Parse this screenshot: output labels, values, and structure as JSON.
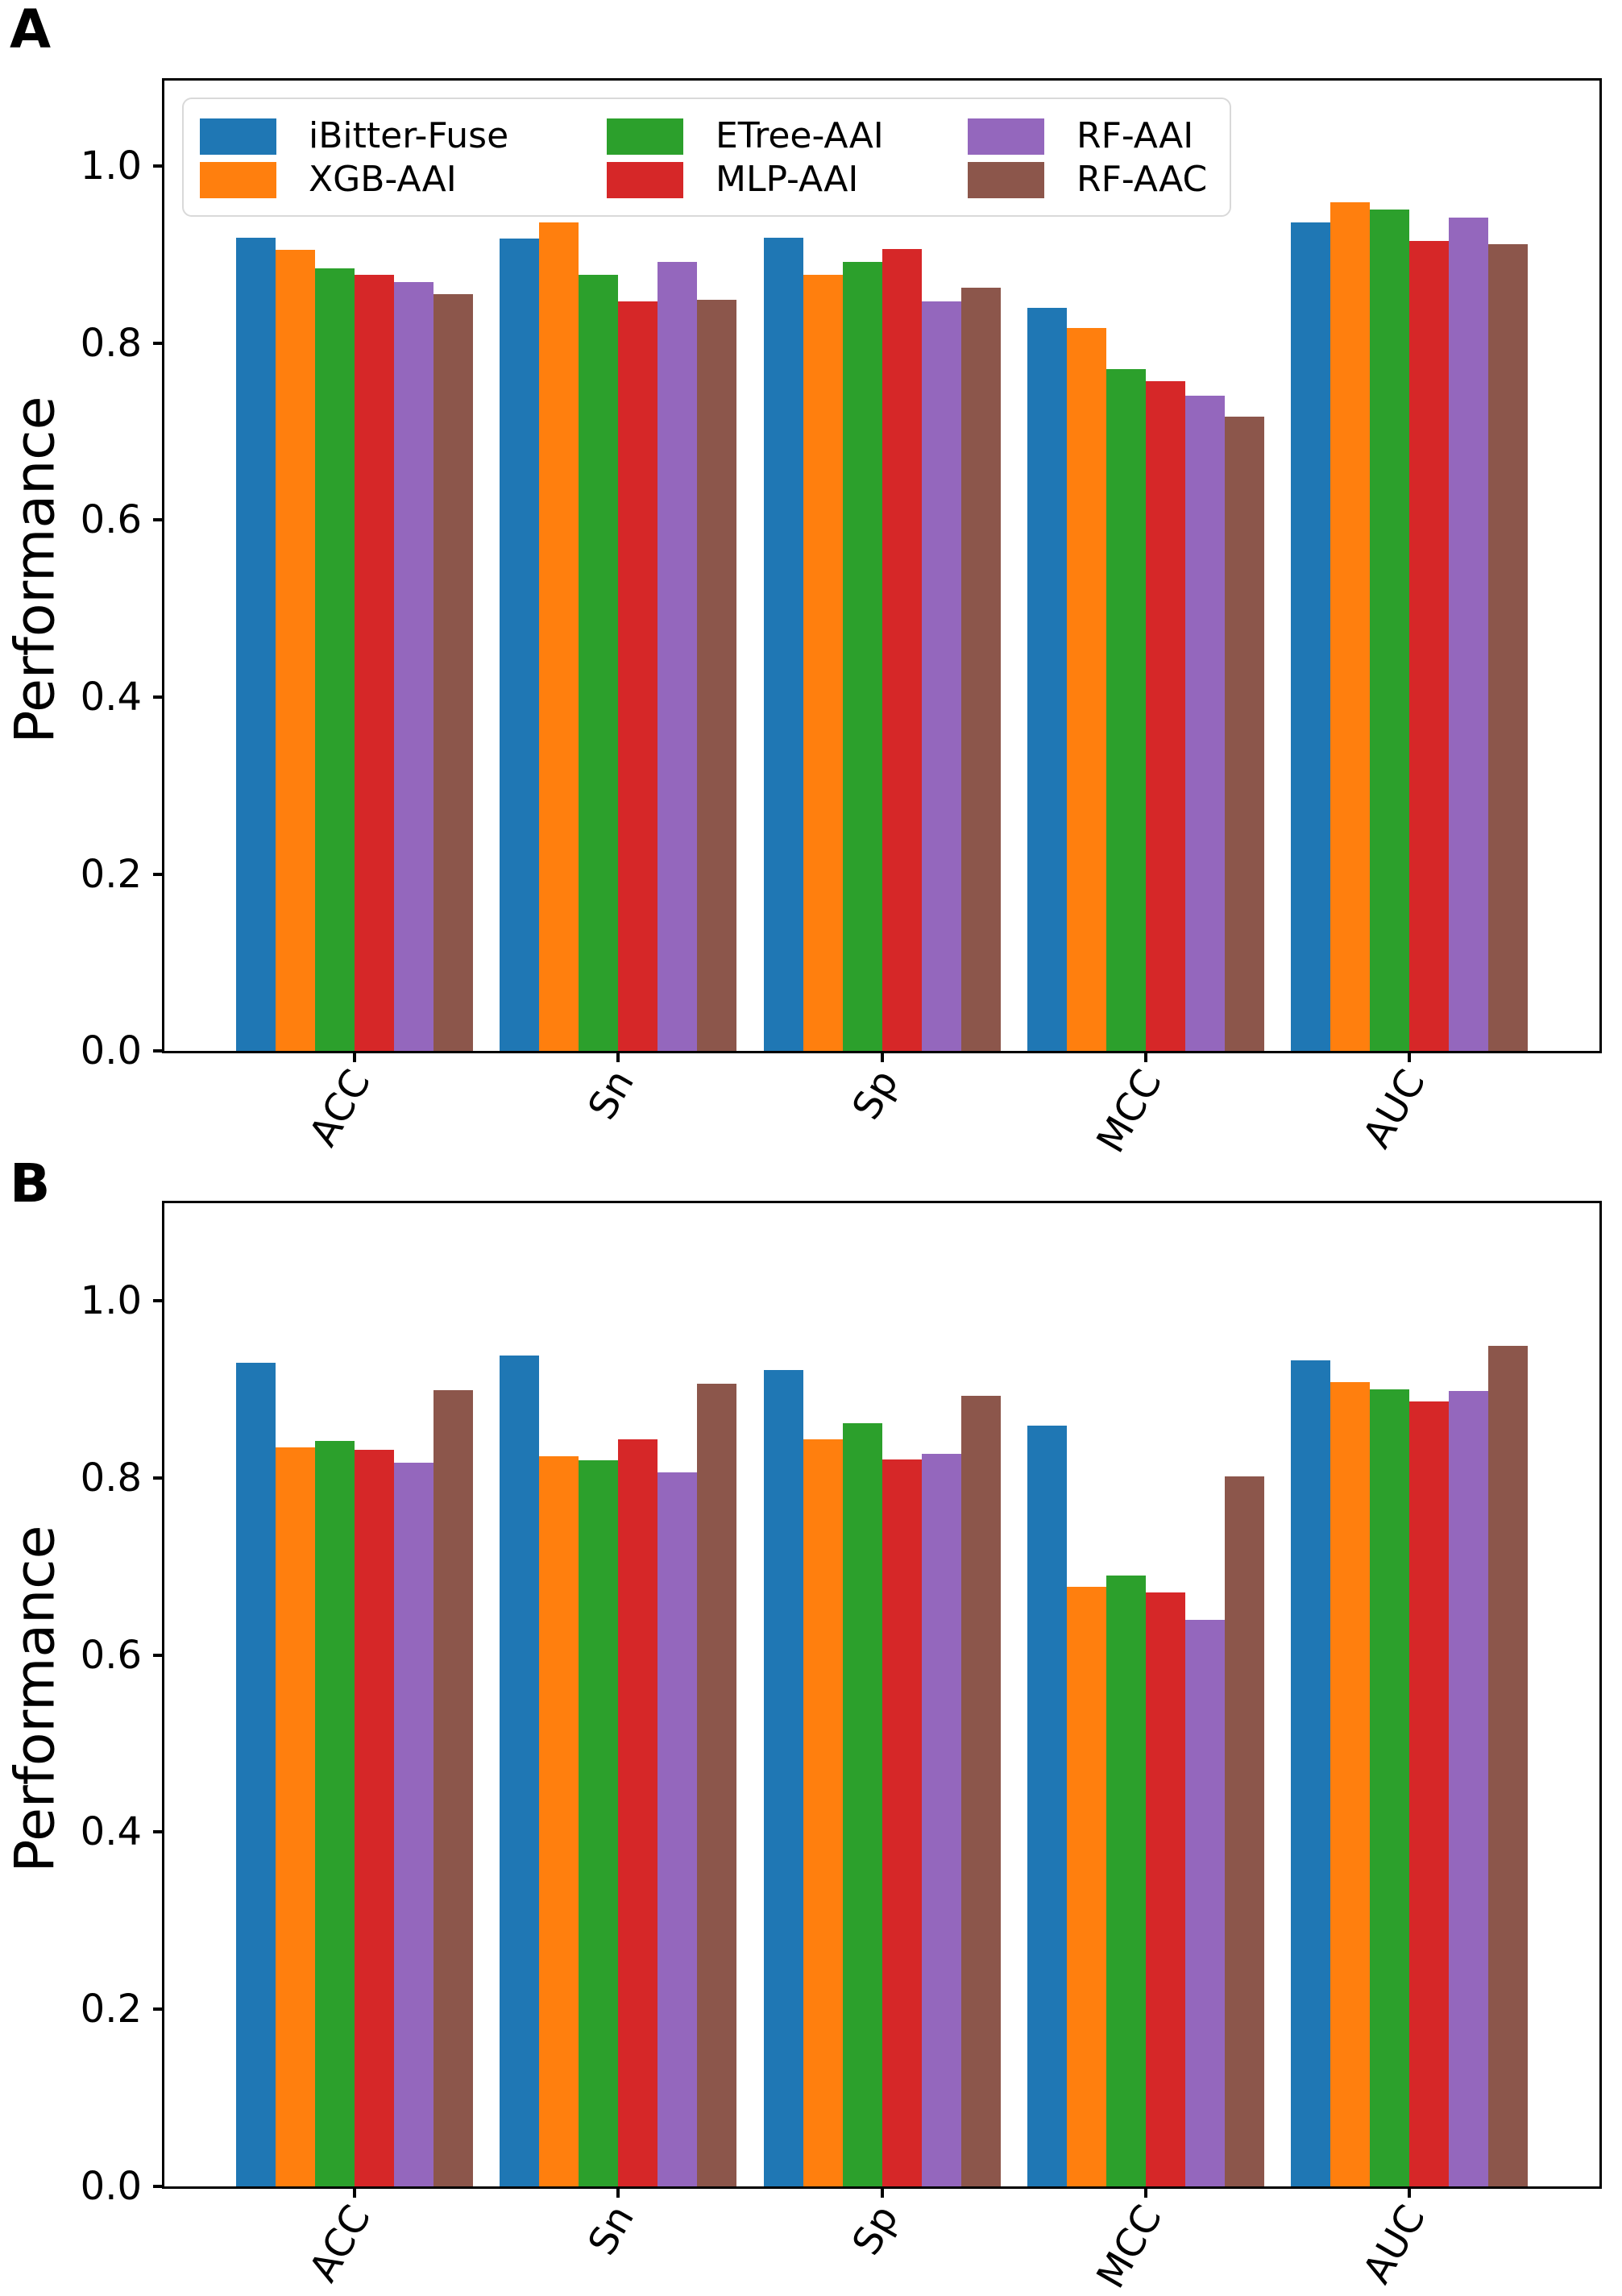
{
  "figure": {
    "background": "#ffffff",
    "axis_color": "#000000",
    "panels": [
      {
        "label": "A",
        "show_legend": true
      },
      {
        "label": "B",
        "show_legend": false
      }
    ]
  },
  "legend": {
    "position": "upper left",
    "columns": [
      [
        0,
        1
      ],
      [
        2,
        3
      ],
      [
        4,
        5
      ]
    ],
    "entries": [
      {
        "name": "iBitter-Fuse",
        "color": "#1f77b4",
        "swatch": "blue-swatch"
      },
      {
        "name": "XGB-AAI",
        "color": "#ff7f0e",
        "swatch": "orange-swatch"
      },
      {
        "name": "ETree-AAI",
        "color": "#2ca02c",
        "swatch": "green-swatch"
      },
      {
        "name": "MLP-AAI",
        "color": "#d62728",
        "swatch": "red-swatch"
      },
      {
        "name": "RF-AAI",
        "color": "#9467bd",
        "swatch": "purple-swatch"
      },
      {
        "name": "RF-AAC",
        "color": "#8c564b",
        "swatch": "brown-swatch"
      }
    ]
  },
  "chart_data": [
    {
      "type": "bar",
      "title": "A",
      "xlabel": "",
      "ylabel": "Performance",
      "ylim": [
        0,
        1.097
      ],
      "yticks": [
        "0.0",
        "0.2",
        "0.4",
        "0.6",
        "0.8",
        "1.0"
      ],
      "ytick_values": [
        0.0,
        0.2,
        0.4,
        0.6,
        0.8,
        1.0
      ],
      "grid": false,
      "legend_position": "upper left",
      "categories": [
        "ACC",
        "Sn",
        "Sp",
        "MCC",
        "AUC"
      ],
      "series": [
        {
          "name": "iBitter-Fuse",
          "color": "#1f77b4",
          "values": [
            0.919,
            0.918,
            0.919,
            0.84,
            0.937
          ]
        },
        {
          "name": "XGB-AAI",
          "color": "#ff7f0e",
          "values": [
            0.906,
            0.937,
            0.877,
            0.817,
            0.959
          ]
        },
        {
          "name": "ETree-AAI",
          "color": "#2ca02c",
          "values": [
            0.885,
            0.877,
            0.892,
            0.771,
            0.951
          ]
        },
        {
          "name": "MLP-AAI",
          "color": "#d62728",
          "values": [
            0.877,
            0.847,
            0.907,
            0.757,
            0.916
          ]
        },
        {
          "name": "RF-AAI",
          "color": "#9467bd",
          "values": [
            0.869,
            0.892,
            0.847,
            0.741,
            0.942
          ]
        },
        {
          "name": "RF-AAC",
          "color": "#8c564b",
          "values": [
            0.856,
            0.849,
            0.863,
            0.717,
            0.912
          ]
        }
      ]
    },
    {
      "type": "bar",
      "title": "B",
      "xlabel": "",
      "ylabel": "Performance",
      "ylim": [
        0,
        1.11
      ],
      "yticks": [
        "0.0",
        "0.2",
        "0.4",
        "0.6",
        "0.8",
        "1.0"
      ],
      "ytick_values": [
        0.0,
        0.2,
        0.4,
        0.6,
        0.8,
        1.0
      ],
      "grid": false,
      "legend_position": "none",
      "categories": [
        "ACC",
        "Sn",
        "Sp",
        "MCC",
        "AUC"
      ],
      "series": [
        {
          "name": "iBitter-Fuse",
          "color": "#1f77b4",
          "values": [
            0.93,
            0.938,
            0.922,
            0.859,
            0.933
          ]
        },
        {
          "name": "XGB-AAI",
          "color": "#ff7f0e",
          "values": [
            0.834,
            0.824,
            0.843,
            0.677,
            0.908
          ]
        },
        {
          "name": "ETree-AAI",
          "color": "#2ca02c",
          "values": [
            0.842,
            0.82,
            0.862,
            0.69,
            0.9
          ]
        },
        {
          "name": "MLP-AAI",
          "color": "#d62728",
          "values": [
            0.832,
            0.843,
            0.821,
            0.671,
            0.886
          ]
        },
        {
          "name": "RF-AAI",
          "color": "#9467bd",
          "values": [
            0.817,
            0.806,
            0.827,
            0.64,
            0.898
          ]
        },
        {
          "name": "RF-AAC",
          "color": "#8c564b",
          "values": [
            0.899,
            0.906,
            0.893,
            0.802,
            0.949
          ]
        }
      ]
    }
  ]
}
